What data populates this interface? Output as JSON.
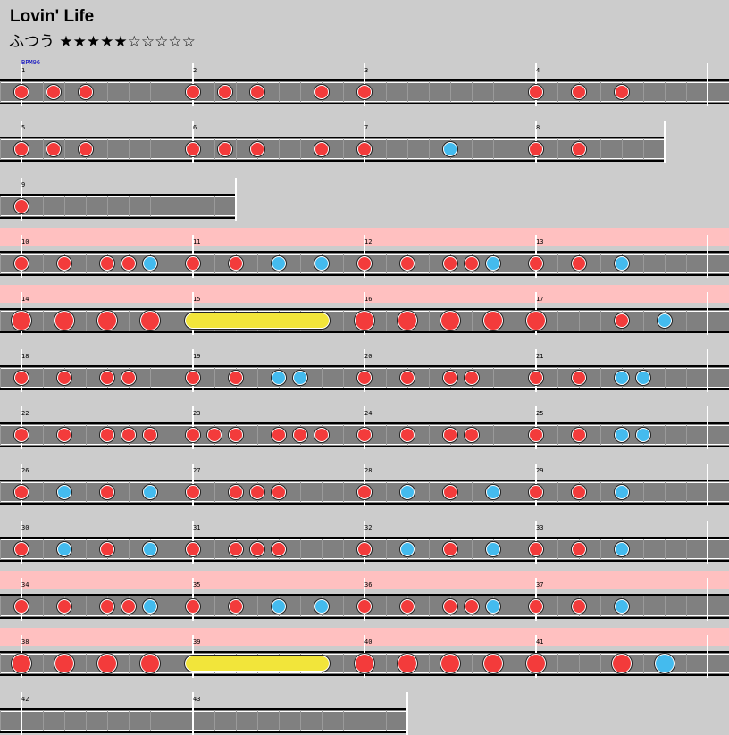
{
  "song": {
    "title": "Lovin' Life",
    "difficulty_label": "ふつう",
    "stars": "★★★★★☆☆☆☆☆"
  },
  "bpm_label": "BPM96",
  "colors": {
    "don": "#f33b3b",
    "ka": "#44bbee",
    "roll": "#f2e53a",
    "gogo": "#ffc0c0",
    "lane": "#808080"
  },
  "rows": [
    {
      "top": 63,
      "len": 4,
      "gogo": false,
      "bars": [
        {
          "n": "1",
          "notes": "d0 d3 d6"
        },
        {
          "n": "2",
          "notes": "d0 d3 d6 d12"
        },
        {
          "n": "3",
          "notes": "d0"
        },
        {
          "n": "4",
          "notes": "d0 d4 d8"
        }
      ]
    },
    {
      "top": 127,
      "len": 3.75,
      "gogo": false,
      "bars": [
        {
          "n": "5",
          "notes": "d0 d3 d6"
        },
        {
          "n": "6",
          "notes": "d0 d3 d6 d12"
        },
        {
          "n": "7",
          "notes": "d0 k8"
        },
        {
          "n": "8",
          "notes": "d0 d4"
        }
      ]
    },
    {
      "top": 191,
      "len": 1.25,
      "gogo": false,
      "bars": [
        {
          "n": "9",
          "notes": "d0"
        }
      ]
    },
    {
      "top": 255,
      "len": 4,
      "gogo": true,
      "bars": [
        {
          "n": "10",
          "notes": "d0 d4 d8 d10 k12"
        },
        {
          "n": "11",
          "notes": "d0 d4 k8 k12"
        },
        {
          "n": "12",
          "notes": "d0 d4 d8 d10 k12"
        },
        {
          "n": "13",
          "notes": "d0 d4 k8"
        }
      ]
    },
    {
      "top": 319,
      "len": 4,
      "gogo": true,
      "bars": [
        {
          "n": "14",
          "notes": "D0 D4 D8 D12"
        },
        {
          "n": "15",
          "notes": "",
          "roll": [
            0,
            12
          ]
        },
        {
          "n": "16",
          "notes": "D0 D4 D8 D12"
        },
        {
          "n": "17",
          "notes": "D0 d8 k12"
        }
      ]
    },
    {
      "top": 383,
      "len": 4,
      "gogo": false,
      "bars": [
        {
          "n": "18",
          "notes": "d0 d4 d8 d10"
        },
        {
          "n": "19",
          "notes": "d0 d4 k8 k10"
        },
        {
          "n": "20",
          "notes": "d0 d4 d8 d10"
        },
        {
          "n": "21",
          "notes": "d0 d4 k8 k10"
        }
      ]
    },
    {
      "top": 447,
      "len": 4,
      "gogo": false,
      "bars": [
        {
          "n": "22",
          "notes": "d0 d4 d8 d10 d12"
        },
        {
          "n": "23",
          "notes": "d0 d2 d4 d8 d10 d12"
        },
        {
          "n": "24",
          "notes": "d0 d4 d8 d10"
        },
        {
          "n": "25",
          "notes": "d0 d4 k8 k10"
        }
      ]
    },
    {
      "top": 511,
      "len": 4,
      "gogo": false,
      "bars": [
        {
          "n": "26",
          "notes": "d0 k4 d8 k12"
        },
        {
          "n": "27",
          "notes": "d0 d4 d6 d8"
        },
        {
          "n": "28",
          "notes": "d0 k4 d8 k12"
        },
        {
          "n": "29",
          "notes": "d0 d4 k8"
        }
      ]
    },
    {
      "top": 575,
      "len": 4,
      "gogo": false,
      "bars": [
        {
          "n": "30",
          "notes": "d0 k4 d8 k12"
        },
        {
          "n": "31",
          "notes": "d0 d4 d6 d8"
        },
        {
          "n": "32",
          "notes": "d0 k4 d8 k12"
        },
        {
          "n": "33",
          "notes": "d0 d4 k8"
        }
      ]
    },
    {
      "top": 639,
      "len": 4,
      "gogo": true,
      "bars": [
        {
          "n": "34",
          "notes": "d0 d4 d8 d10 k12"
        },
        {
          "n": "35",
          "notes": "d0 d4 k8 k12"
        },
        {
          "n": "36",
          "notes": "d0 d4 d8 d10 k12"
        },
        {
          "n": "37",
          "notes": "d0 d4 k8"
        }
      ]
    },
    {
      "top": 703,
      "len": 4,
      "gogo": true,
      "bars": [
        {
          "n": "38",
          "notes": "D0 D4 D8 D12"
        },
        {
          "n": "39",
          "notes": "",
          "roll": [
            0,
            12
          ]
        },
        {
          "n": "40",
          "notes": "D0 D4 D8 D12"
        },
        {
          "n": "41",
          "notes": "D0 D8 K12"
        }
      ]
    },
    {
      "top": 767,
      "len": 2.25,
      "gogo": false,
      "bars": [
        {
          "n": "42",
          "notes": ""
        },
        {
          "n": "43",
          "notes": ""
        }
      ]
    }
  ]
}
